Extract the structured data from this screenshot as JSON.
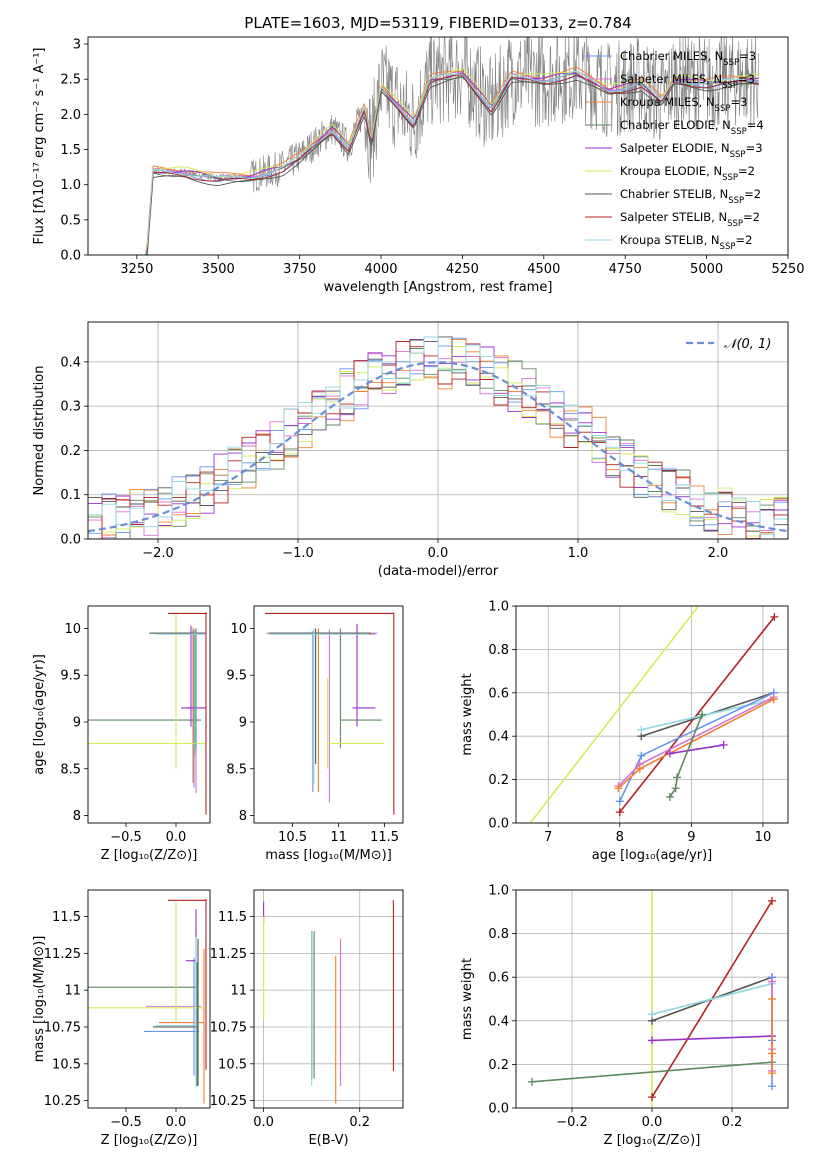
{
  "figure": {
    "title": "PLATE=1603, MJD=53119, FIBERID=0133, z=0.784"
  },
  "legend_models": [
    {
      "name": "Chabrier MILES, N",
      "sub": "SSP",
      "tail": "=3",
      "color": "#6495ed"
    },
    {
      "name": "Salpeter MILES, N",
      "sub": "SSP",
      "tail": "=3",
      "color": "#da70d6"
    },
    {
      "name": "Kroupa MILES, N",
      "sub": "SSP",
      "tail": "=3",
      "color": "#f08030"
    },
    {
      "name": "Chabrier ELODIE, N",
      "sub": "SSP",
      "tail": "=4",
      "color": "#5f8a5f"
    },
    {
      "name": "Salpeter ELODIE, N",
      "sub": "SSP",
      "tail": "=3",
      "color": "#9932cc"
    },
    {
      "name": "Kroupa ELODIE, N",
      "sub": "SSP",
      "tail": "=2",
      "color": "#d4eb5a"
    },
    {
      "name": "Chabrier STELIB, N",
      "sub": "SSP",
      "tail": "=2",
      "color": "#555555"
    },
    {
      "name": "Salpeter STELIB, N",
      "sub": "SSP",
      "tail": "=2",
      "color": "#b22222"
    },
    {
      "name": "Kroupa STELIB, N",
      "sub": "SSP",
      "tail": "=2",
      "color": "#8fd9e0"
    }
  ],
  "chart_data": [
    {
      "type": "line",
      "panel": "spectrum",
      "xlabel": "wavelength [Angstrom, rest frame]",
      "ylabel": "Flux [fλ10⁻¹⁷ erg cm⁻² s⁻¹ A⁻¹]",
      "xlim": [
        3100,
        5250
      ],
      "ylim": [
        0,
        3.1
      ],
      "xticks": [
        3250,
        3500,
        3750,
        4000,
        4250,
        4500,
        4750,
        5000,
        5250
      ],
      "yticks": [
        0.0,
        0.5,
        1.0,
        1.5,
        2.0,
        2.5,
        3.0
      ],
      "data_color": "#808080",
      "data_range": [
        3190,
        5160
      ],
      "model_anchor_x": [
        3180,
        3280,
        3300,
        3400,
        3500,
        3600,
        3700,
        3750,
        3800,
        3850,
        3900,
        3950,
        3970,
        4000,
        4100,
        4150,
        4250,
        4340,
        4400,
        4500,
        4600,
        4700,
        4800,
        4862,
        4900,
        5000,
        5100,
        5160
      ],
      "model_anchor_y": [
        0,
        0,
        1.2,
        1.18,
        1.1,
        1.12,
        1.25,
        1.4,
        1.6,
        1.8,
        1.55,
        2.1,
        1.6,
        2.4,
        1.9,
        2.5,
        2.6,
        2.1,
        2.55,
        2.5,
        2.6,
        2.35,
        2.45,
        2.2,
        2.5,
        2.45,
        2.5,
        2.5
      ]
    },
    {
      "type": "histogram",
      "panel": "residuals",
      "xlabel": "(data-model)/error",
      "ylabel": "Normed distribution",
      "xlim": [
        -2.5,
        2.5
      ],
      "ylim": [
        0,
        0.49
      ],
      "xticks": [
        -2,
        -1,
        0,
        1,
        2
      ],
      "yticks": [
        0.0,
        0.1,
        0.2,
        0.3,
        0.4
      ],
      "reference_curve": {
        "name": "𝒩(0, 1)",
        "color": "#6a8ed6",
        "mean": 0,
        "sigma": 1
      },
      "bin_width": 0.1
    },
    {
      "type": "errorbar",
      "panel": "age-vs-Z",
      "xlabel": "Z [log₁₀(Z/Z⊙)]",
      "ylabel": "age  [log₁₀(age/yr)]",
      "xlim": [
        -0.88,
        0.34
      ],
      "ylim": [
        7.92,
        10.24
      ],
      "xticks": [
        -0.5,
        0.0
      ],
      "yticks": [
        8.0,
        8.5,
        9.0,
        9.5,
        10.0
      ],
      "points": [
        {
          "color": "#6495ed",
          "x": 0.18,
          "xerr": [
            0.45,
            0.12
          ],
          "y": 9.95,
          "yerr": [
            1.65,
            0.03
          ]
        },
        {
          "color": "#da70d6",
          "x": 0.2,
          "xerr": [
            0.38,
            0.1
          ],
          "y": 9.94,
          "yerr": [
            1.7,
            0.05
          ]
        },
        {
          "color": "#f08030",
          "x": 0.17,
          "xerr": [
            0.4,
            0.12
          ],
          "y": 9.95,
          "yerr": [
            1.6,
            0.06
          ]
        },
        {
          "color": "#5f8a5f",
          "x": 0.2,
          "xerr": [
            1.1,
            0.05
          ],
          "y": 9.02,
          "yerr": [
            0.3,
            0.98
          ]
        },
        {
          "color": "#9932cc",
          "x": 0.15,
          "xerr": [
            0.1,
            0.15
          ],
          "y": 9.15,
          "yerr": [
            0.2,
            0.88
          ]
        },
        {
          "color": "#d4eb5a",
          "x": 0.0,
          "xerr": [
            0.9,
            0.3
          ],
          "y": 8.77,
          "yerr": [
            0.27,
            1.4
          ]
        },
        {
          "color": "#555555",
          "x": 0.19,
          "xerr": [
            0.45,
            0.1
          ],
          "y": 9.95,
          "yerr": [
            1.3,
            0.05
          ]
        },
        {
          "color": "#b22222",
          "x": 0.3,
          "xerr": [
            0.38,
            0.01
          ],
          "y": 10.16,
          "yerr": [
            2.15,
            0.01
          ]
        },
        {
          "color": "#8fd9e0",
          "x": 0.19,
          "xerr": [
            0.4,
            0.1
          ],
          "y": 9.94,
          "yerr": [
            1.3,
            0.06
          ]
        }
      ]
    },
    {
      "type": "errorbar",
      "panel": "age-vs-mass",
      "xlabel": "mass [log₁₀(M/M⊙)]",
      "ylabel": "",
      "xlim": [
        10.08,
        11.7
      ],
      "ylim": [
        7.92,
        10.24
      ],
      "xticks": [
        10.5,
        11.0,
        11.5
      ],
      "yticks": [
        8.0,
        8.5,
        9.0,
        9.5,
        10.0
      ],
      "points": [
        {
          "color": "#6495ed",
          "x": 10.72,
          "xerr": [
            0.5,
            0.7
          ],
          "y": 9.95,
          "yerr": [
            1.7,
            0.02
          ]
        },
        {
          "color": "#da70d6",
          "x": 10.9,
          "xerr": [
            0.6,
            0.5
          ],
          "y": 9.94,
          "yerr": [
            1.8,
            0.05
          ]
        },
        {
          "color": "#f08030",
          "x": 10.78,
          "xerr": [
            0.55,
            0.6
          ],
          "y": 9.95,
          "yerr": [
            1.7,
            0.05
          ]
        },
        {
          "color": "#5f8a5f",
          "x": 11.02,
          "xerr": [
            0.0,
            0.45
          ],
          "y": 9.02,
          "yerr": [
            0.3,
            0.98
          ]
        },
        {
          "color": "#9932cc",
          "x": 11.2,
          "xerr": [
            0.05,
            0.2
          ],
          "y": 9.15,
          "yerr": [
            0.2,
            0.9
          ]
        },
        {
          "color": "#d4eb5a",
          "x": 10.88,
          "xerr": [
            0.0,
            0.62
          ],
          "y": 8.77,
          "yerr": [
            0.27,
            0.7
          ]
        },
        {
          "color": "#555555",
          "x": 10.75,
          "xerr": [
            0.5,
            0.6
          ],
          "y": 9.95,
          "yerr": [
            1.4,
            0.05
          ]
        },
        {
          "color": "#b22222",
          "x": 11.6,
          "xerr": [
            1.4,
            0.0
          ],
          "y": 10.16,
          "yerr": [
            2.15,
            0.01
          ]
        },
        {
          "color": "#8fd9e0",
          "x": 10.73,
          "xerr": [
            0.5,
            0.6
          ],
          "y": 9.94,
          "yerr": [
            1.6,
            0.06
          ]
        }
      ]
    },
    {
      "type": "line",
      "panel": "massweight-vs-age",
      "xlabel": "age  [log₁₀(age/yr)]",
      "ylabel": "mass weight",
      "xlim": [
        6.55,
        10.35
      ],
      "ylim": [
        0,
        1.0
      ],
      "xticks": [
        7,
        8,
        9,
        10
      ],
      "yticks": [
        0.0,
        0.2,
        0.4,
        0.6,
        0.8,
        1.0
      ],
      "series": [
        {
          "color": "#d4eb5a",
          "x": [
            6.75,
            9.1
          ],
          "y": [
            0.0,
            1.0
          ],
          "markers": false
        },
        {
          "color": "#b22222",
          "x": [
            8.0,
            10.16
          ],
          "y": [
            0.05,
            0.95
          ],
          "markers": true
        },
        {
          "color": "#555555",
          "x": [
            8.3,
            10.15
          ],
          "y": [
            0.4,
            0.6
          ],
          "markers": true
        },
        {
          "color": "#8fd9e0",
          "x": [
            8.3,
            10.15
          ],
          "y": [
            0.43,
            0.57
          ],
          "markers": true
        },
        {
          "color": "#6495ed",
          "x": [
            8.0,
            8.3,
            10.15
          ],
          "y": [
            0.1,
            0.31,
            0.6
          ],
          "markers": true
        },
        {
          "color": "#da70d6",
          "x": [
            7.98,
            8.28,
            10.15
          ],
          "y": [
            0.17,
            0.27,
            0.58
          ],
          "markers": true
        },
        {
          "color": "#f08030",
          "x": [
            7.98,
            8.28,
            10.15
          ],
          "y": [
            0.16,
            0.25,
            0.57
          ],
          "markers": true
        },
        {
          "color": "#9932cc",
          "x": [
            8.7,
            9.45
          ],
          "y": [
            0.32,
            0.36
          ],
          "markers": true
        },
        {
          "color": "#5f8a5f",
          "x": [
            8.7,
            8.78,
            8.8,
            9.15
          ],
          "y": [
            0.12,
            0.16,
            0.21,
            0.5
          ],
          "markers": true
        }
      ]
    },
    {
      "type": "errorbar",
      "panel": "mass-vs-Z",
      "xlabel": "Z [log₁₀(Z/Z⊙)]",
      "ylabel": "mass [log₁₀(M/M⊙)]",
      "xlim": [
        -0.88,
        0.34
      ],
      "ylim": [
        10.2,
        11.68
      ],
      "xticks": [
        -0.5,
        0.0
      ],
      "yticks": [
        10.25,
        10.5,
        10.75,
        11.0,
        11.25,
        11.5
      ],
      "points": [
        {
          "color": "#6495ed",
          "x": 0.18,
          "xerr": [
            0.5,
            0.05
          ],
          "y": 10.72,
          "yerr": [
            0.3,
            0.5
          ]
        },
        {
          "color": "#da70d6",
          "x": 0.2,
          "xerr": [
            0.5,
            0.05
          ],
          "y": 10.89,
          "yerr": [
            0.5,
            0.5
          ]
        },
        {
          "color": "#f08030",
          "x": 0.28,
          "xerr": [
            0.45,
            0.0
          ],
          "y": 10.78,
          "yerr": [
            0.55,
            0.5
          ]
        },
        {
          "color": "#5f8a5f",
          "x": 0.21,
          "xerr": [
            1.1,
            0.0
          ],
          "y": 11.02,
          "yerr": [
            0.67,
            0.17
          ]
        },
        {
          "color": "#9932cc",
          "x": 0.2,
          "xerr": [
            0.1,
            0.0
          ],
          "y": 11.2,
          "yerr": [
            0.3,
            0.35
          ]
        },
        {
          "color": "#d4eb5a",
          "x": 0.0,
          "xerr": [
            0.9,
            0.3
          ],
          "y": 10.88,
          "yerr": [
            0.1,
            0.72
          ]
        },
        {
          "color": "#555555",
          "x": 0.22,
          "xerr": [
            0.45,
            0.0
          ],
          "y": 10.75,
          "yerr": [
            0.4,
            0.6
          ]
        },
        {
          "color": "#b22222",
          "x": 0.3,
          "xerr": [
            0.38,
            0.0
          ],
          "y": 11.61,
          "yerr": [
            1.15,
            0.01
          ]
        },
        {
          "color": "#8fd9e0",
          "x": 0.2,
          "xerr": [
            0.4,
            0.0
          ],
          "y": 10.76,
          "yerr": [
            0.42,
            0.6
          ]
        }
      ]
    },
    {
      "type": "errorbar",
      "panel": "mass-vs-EBV",
      "xlabel": "E(B-V)",
      "ylabel": "",
      "xlim": [
        -0.02,
        0.29
      ],
      "ylim": [
        10.2,
        11.68
      ],
      "xticks": [
        0.0,
        0.2
      ],
      "yticks": [
        10.25,
        10.5,
        10.75,
        11.0,
        11.25,
        11.5
      ],
      "points": [
        {
          "color": "#6495ed",
          "x": 0.1,
          "y": 10.9,
          "yerr": [
            0.5,
            0.5
          ]
        },
        {
          "color": "#da70d6",
          "x": 0.16,
          "y": 10.9,
          "yerr": [
            0.55,
            0.45
          ]
        },
        {
          "color": "#f08030",
          "x": 0.15,
          "y": 10.73,
          "yerr": [
            0.5,
            0.5
          ]
        },
        {
          "color": "#5f8a5f",
          "x": 0.105,
          "y": 10.9,
          "yerr": [
            0.5,
            0.5
          ]
        },
        {
          "color": "#9932cc",
          "x": 0.0,
          "y": 11.55,
          "yerr": [
            0.1,
            0.05
          ]
        },
        {
          "color": "#d4eb5a",
          "x": 0.0,
          "y": 11.1,
          "yerr": [
            0.3,
            0.4
          ]
        },
        {
          "color": "#555555",
          "x": 0.1,
          "y": 10.9,
          "yerr": [
            0.5,
            0.5
          ]
        },
        {
          "color": "#b22222",
          "x": 0.27,
          "y": 10.95,
          "yerr": [
            0.5,
            0.66
          ]
        },
        {
          "color": "#8fd9e0",
          "x": 0.1,
          "y": 10.9,
          "yerr": [
            0.55,
            0.5
          ]
        }
      ]
    },
    {
      "type": "line",
      "panel": "massweight-vs-Z",
      "xlabel": "Z [log₁₀(Z/Z⊙)]",
      "ylabel": "mass weight",
      "xlim": [
        -0.34,
        0.34
      ],
      "ylim": [
        0,
        1.0
      ],
      "xticks": [
        -0.2,
        0.0,
        0.2
      ],
      "yticks": [
        0.0,
        0.2,
        0.4,
        0.6,
        0.8,
        1.0
      ],
      "series": [
        {
          "color": "#d4eb5a",
          "x": [
            0.0,
            0.0
          ],
          "y": [
            0.0,
            1.0
          ],
          "markers": false
        },
        {
          "color": "#b22222",
          "x": [
            0.0,
            0.3
          ],
          "y": [
            0.05,
            0.95
          ],
          "markers": true
        },
        {
          "color": "#555555",
          "x": [
            0.0,
            0.3
          ],
          "y": [
            0.4,
            0.6
          ],
          "markers": true
        },
        {
          "color": "#8fd9e0",
          "x": [
            0.0,
            0.3
          ],
          "y": [
            0.43,
            0.57
          ],
          "markers": true
        },
        {
          "color": "#9932cc",
          "x": [
            0.0,
            0.3
          ],
          "y": [
            0.31,
            0.33
          ],
          "markers": true
        },
        {
          "color": "#5f8a5f",
          "x": [
            -0.3,
            0.3
          ],
          "y": [
            0.12,
            0.21
          ],
          "markers": true
        },
        {
          "color": "#6495ed",
          "x": [
            0.3,
            0.3,
            0.3
          ],
          "y": [
            0.1,
            0.31,
            0.6
          ],
          "markers": true
        },
        {
          "color": "#da70d6",
          "x": [
            0.3,
            0.3,
            0.3
          ],
          "y": [
            0.17,
            0.27,
            0.58
          ],
          "markers": true
        },
        {
          "color": "#f08030",
          "x": [
            0.3,
            0.3,
            0.3
          ],
          "y": [
            0.16,
            0.25,
            0.5
          ],
          "markers": true
        }
      ]
    }
  ]
}
